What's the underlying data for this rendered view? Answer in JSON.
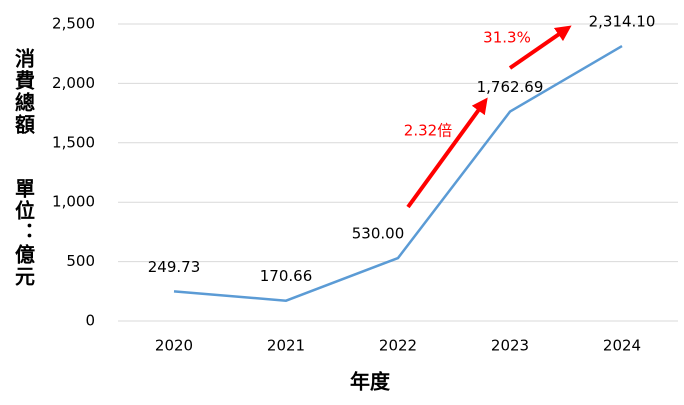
{
  "chart_data": {
    "type": "line",
    "y_label": "消費總額",
    "y_unit": "單位：億元",
    "x_label": "年度",
    "categories": [
      "2020",
      "2021",
      "2022",
      "2023",
      "2024"
    ],
    "series": [
      {
        "name": "消費總額",
        "color": "#5b9bd5",
        "values": [
          249.73,
          170.66,
          530.0,
          1762.69,
          2314.1
        ],
        "value_labels": [
          "249.73",
          "170.66",
          "530.00",
          "1,762.69",
          "2,314.10"
        ]
      }
    ],
    "ylim": [
      0,
      2500
    ],
    "yticks": [
      0,
      500,
      {
        "value": 1000,
        "label": "1,000"
      },
      {
        "value": 1500,
        "label": "1,500"
      },
      {
        "value": 2000,
        "label": "2,000"
      },
      {
        "value": 2500,
        "label": "2,500"
      }
    ],
    "grid": true,
    "annotations": [
      {
        "text": "2.32倍",
        "color": "#ff0000"
      },
      {
        "text": "31.3%",
        "color": "#ff0000"
      }
    ]
  }
}
